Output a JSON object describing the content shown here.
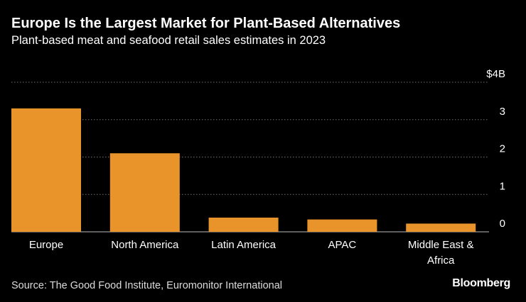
{
  "chart_data": {
    "type": "bar",
    "title": "Europe Is the Largest Market for Plant-Based Alternatives",
    "subtitle": "Plant-based meat and seafood retail sales estimates in 2023",
    "categories": [
      "Europe",
      "North America",
      "Latin America",
      "APAC",
      "Middle East & Africa"
    ],
    "values": [
      3.3,
      2.1,
      0.38,
      0.33,
      0.22
    ],
    "ylim": [
      0,
      4
    ],
    "yticks": [
      0,
      1,
      2,
      3,
      4
    ],
    "ytick_labels": [
      "0",
      "1",
      "2",
      "3",
      "$4B"
    ],
    "ylabel": "",
    "xlabel": "",
    "grid": true,
    "bar_color": "#e8942a"
  },
  "footer": {
    "source": "Source: The Good Food Institute, Euromonitor International",
    "brand": "Bloomberg"
  }
}
